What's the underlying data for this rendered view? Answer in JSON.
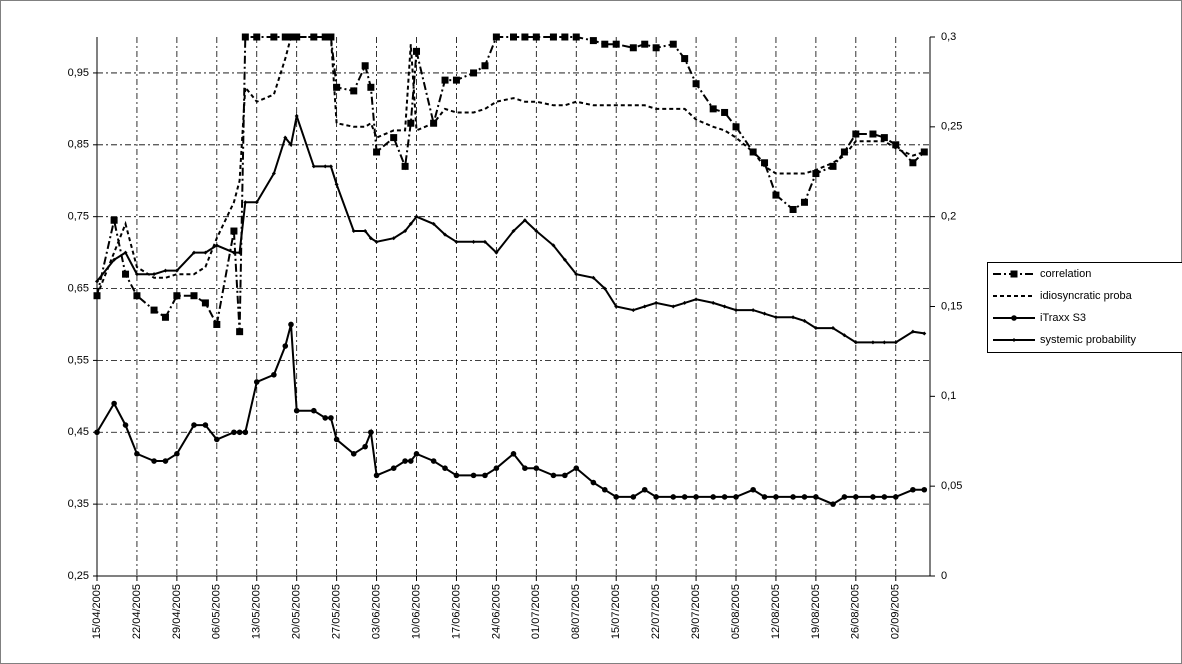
{
  "chart_data": {
    "type": "line",
    "grid": true,
    "legend": "right",
    "xlim": [
      "15/04/2005",
      "08/09/2005"
    ],
    "xticks": [
      "15/04/2005",
      "22/04/2005",
      "29/04/2005",
      "06/05/2005",
      "13/05/2005",
      "20/05/2005",
      "27/05/2005",
      "03/06/2005",
      "10/06/2005",
      "17/06/2005",
      "24/06/2005",
      "01/07/2005",
      "08/07/2005",
      "15/07/2005",
      "22/07/2005",
      "29/07/2005",
      "05/08/2005",
      "12/08/2005",
      "19/08/2005",
      "26/08/2005",
      "02/09/2005"
    ],
    "ylim": [
      0.25,
      1.0
    ],
    "yticks": [
      {
        "value": 0.25,
        "label": "0,25"
      },
      {
        "value": 0.35,
        "label": "0,35"
      },
      {
        "value": 0.45,
        "label": "0,45"
      },
      {
        "value": 0.55,
        "label": "0,55"
      },
      {
        "value": 0.65,
        "label": "0,65"
      },
      {
        "value": 0.75,
        "label": "0,75"
      },
      {
        "value": 0.85,
        "label": "0,85"
      },
      {
        "value": 0.95,
        "label": "0,95"
      }
    ],
    "y2lim": [
      0,
      0.3
    ],
    "y2ticks": [
      0,
      {
        "value": 0.05,
        "label": "0,05"
      },
      {
        "value": 0.1,
        "label": "0,1"
      },
      {
        "value": 0.15,
        "label": "0,15"
      },
      {
        "value": 0.2,
        "label": "0,2"
      },
      {
        "value": 0.25,
        "label": "0,25"
      },
      {
        "value": 0.3,
        "label": "0,3"
      }
    ],
    "x": [
      "15/04/2005",
      "18/04/2005",
      "20/04/2005",
      "22/04/2005",
      "25/04/2005",
      "27/04/2005",
      "29/04/2005",
      "02/05/2005",
      "04/05/2005",
      "06/05/2005",
      "09/05/2005",
      "10/05/2005",
      "11/05/2005",
      "13/05/2005",
      "16/05/2005",
      "18/05/2005",
      "19/05/2005",
      "20/05/2005",
      "23/05/2005",
      "25/05/2005",
      "26/05/2005",
      "27/05/2005",
      "30/05/2005",
      "01/06/2005",
      "02/06/2005",
      "03/06/2005",
      "06/06/2005",
      "08/06/2005",
      "09/06/2005",
      "10/06/2005",
      "13/06/2005",
      "15/06/2005",
      "17/06/2005",
      "20/06/2005",
      "22/06/2005",
      "24/06/2005",
      "27/06/2005",
      "29/06/2005",
      "01/07/2005",
      "04/07/2005",
      "06/07/2005",
      "08/07/2005",
      "11/07/2005",
      "13/07/2005",
      "15/07/2005",
      "18/07/2005",
      "20/07/2005",
      "22/07/2005",
      "25/07/2005",
      "27/07/2005",
      "29/07/2005",
      "01/08/2005",
      "03/08/2005",
      "05/08/2005",
      "08/08/2005",
      "10/08/2005",
      "12/08/2005",
      "15/08/2005",
      "17/08/2005",
      "19/08/2005",
      "22/08/2005",
      "24/08/2005",
      "26/08/2005",
      "29/08/2005",
      "31/08/2005",
      "02/09/2005",
      "05/09/2005",
      "07/09/2005"
    ],
    "series": [
      {
        "name": "correlation",
        "color": "#000000",
        "line_style": "dash-dot",
        "marker": "square",
        "values": [
          0.64,
          0.745,
          0.67,
          0.64,
          0.62,
          0.61,
          0.64,
          0.64,
          0.63,
          0.6,
          0.73,
          0.59,
          1.0,
          1.0,
          1.0,
          1.0,
          1.0,
          1.0,
          1.0,
          1.0,
          1.0,
          0.93,
          0.925,
          0.96,
          0.93,
          0.84,
          0.86,
          0.82,
          0.88,
          0.98,
          0.88,
          0.94,
          0.94,
          0.95,
          0.96,
          1.0,
          1.0,
          1.0,
          1.0,
          1.0,
          1.0,
          1.0,
          0.995,
          0.99,
          0.99,
          0.985,
          0.99,
          0.985,
          0.99,
          0.97,
          0.935,
          0.9,
          0.895,
          0.875,
          0.84,
          0.825,
          0.78,
          0.76,
          0.77,
          0.81,
          0.82,
          0.84,
          0.865,
          0.865,
          0.86,
          0.85,
          0.825,
          0.84
        ]
      },
      {
        "name": "idiosyncratic proba",
        "color": "#000000",
        "line_style": "dash",
        "marker": "none",
        "values": [
          0.64,
          0.7,
          0.74,
          0.68,
          0.665,
          0.665,
          0.67,
          0.67,
          0.68,
          0.72,
          0.77,
          0.8,
          0.93,
          0.91,
          0.92,
          0.97,
          1.0,
          1.0,
          1.0,
          1.0,
          1.0,
          0.88,
          0.875,
          0.875,
          0.88,
          0.86,
          0.87,
          0.87,
          0.99,
          0.87,
          0.88,
          0.9,
          0.895,
          0.895,
          0.9,
          0.91,
          0.915,
          0.91,
          0.91,
          0.905,
          0.905,
          0.91,
          0.905,
          0.905,
          0.905,
          0.905,
          0.905,
          0.9,
          0.9,
          0.9,
          0.885,
          0.875,
          0.87,
          0.86,
          0.84,
          0.82,
          0.81,
          0.81,
          0.81,
          0.815,
          0.825,
          0.835,
          0.855,
          0.855,
          0.855,
          0.845,
          0.835,
          0.84
        ]
      },
      {
        "name": "iTraxx S3",
        "color": "#000000",
        "line_style": "solid",
        "marker": "circle",
        "values": [
          0.45,
          0.49,
          0.46,
          0.42,
          0.41,
          0.41,
          0.42,
          0.46,
          0.46,
          0.44,
          0.45,
          0.45,
          0.45,
          0.52,
          0.53,
          0.57,
          0.6,
          0.48,
          0.48,
          0.47,
          0.47,
          0.44,
          0.42,
          0.43,
          0.45,
          0.39,
          0.4,
          0.41,
          0.41,
          0.42,
          0.41,
          0.4,
          0.39,
          0.39,
          0.39,
          0.4,
          0.42,
          0.4,
          0.4,
          0.39,
          0.39,
          0.4,
          0.38,
          0.37,
          0.36,
          0.36,
          0.37,
          0.36,
          0.36,
          0.36,
          0.36,
          0.36,
          0.36,
          0.36,
          0.37,
          0.36,
          0.36,
          0.36,
          0.36,
          0.36,
          0.35,
          0.36,
          0.36,
          0.36,
          0.36,
          0.36,
          0.37,
          0.37
        ]
      },
      {
        "name": "systemic probability",
        "color": "#000000",
        "line_style": "solid",
        "marker": "diamond",
        "axis": "y2",
        "values": [
          0.164,
          0.176,
          0.18,
          0.168,
          0.168,
          0.17,
          0.17,
          0.18,
          0.18,
          0.184,
          0.18,
          0.18,
          0.208,
          0.208,
          0.224,
          0.244,
          0.24,
          0.256,
          0.228,
          0.228,
          0.228,
          0.218,
          0.192,
          0.192,
          0.188,
          0.186,
          0.188,
          0.192,
          0.196,
          0.2,
          0.196,
          0.19,
          0.186,
          0.186,
          0.186,
          0.18,
          0.192,
          0.198,
          0.192,
          0.184,
          0.176,
          0.168,
          0.166,
          0.16,
          0.15,
          0.148,
          0.15,
          0.152,
          0.15,
          0.152,
          0.154,
          0.152,
          0.15,
          0.148,
          0.148,
          0.146,
          0.144,
          0.144,
          0.142,
          0.138,
          0.138,
          0.134,
          0.13,
          0.13,
          0.13,
          0.13,
          0.136,
          0.135
        ]
      }
    ]
  }
}
